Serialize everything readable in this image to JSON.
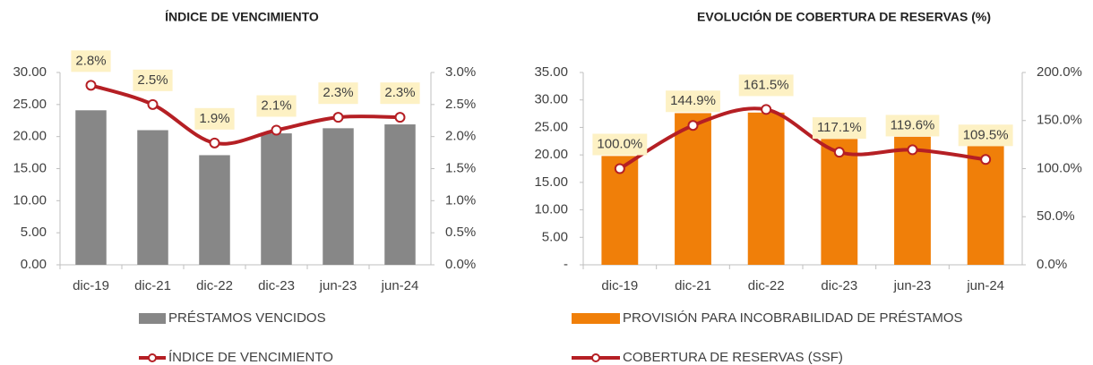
{
  "chart_data": [
    {
      "type": "bar",
      "title": "ÍNDICE DE VENCIMIENTO",
      "categories": [
        "dic-19",
        "dic-21",
        "dic-22",
        "dic-23",
        "jun-23",
        "jun-24"
      ],
      "series": [
        {
          "name": "PRÉSTAMOS VENCIDOS",
          "color": "#878787",
          "values": [
            24.1,
            21.0,
            17.1,
            20.5,
            21.3,
            21.9
          ]
        },
        {
          "name": "ÍNDICE DE VENCIMIENTO",
          "color": "#b51f24",
          "axis": "y2",
          "values": [
            2.8,
            2.5,
            1.9,
            2.1,
            2.3,
            2.3
          ],
          "value_labels": [
            "2.8%",
            "2.5%",
            "1.9%",
            "2.1%",
            "2.3%",
            "2.3%"
          ]
        }
      ],
      "ylim": [
        0,
        30
      ],
      "yticks": [
        {
          "value": 0,
          "label": "0.00"
        },
        {
          "value": 5,
          "label": "5.00"
        },
        {
          "value": 10,
          "label": "10.00"
        },
        {
          "value": 15,
          "label": "15.00"
        },
        {
          "value": 20,
          "label": "20.00"
        },
        {
          "value": 25,
          "label": "25.00"
        },
        {
          "value": 30,
          "label": "30.00"
        }
      ],
      "y2lim": [
        0,
        3
      ],
      "y2ticks": [
        {
          "value": 0,
          "label": "0.0%"
        },
        {
          "value": 0.5,
          "label": "0.5%"
        },
        {
          "value": 1,
          "label": "1.0%"
        },
        {
          "value": 1.5,
          "label": "1.5%"
        },
        {
          "value": 2,
          "label": "2.0%"
        },
        {
          "value": 2.5,
          "label": "2.5%"
        },
        {
          "value": 3,
          "label": "3.0%"
        }
      ],
      "legend": "bottom"
    },
    {
      "type": "bar",
      "title": "EVOLUCIÓN DE COBERTURA DE RESERVAS (%)",
      "categories": [
        "dic-19",
        "dic-21",
        "dic-22",
        "dic-23",
        "jun-23",
        "jun-24"
      ],
      "series": [
        {
          "name": "PROVISIÓN PARA INCOBRABILIDAD DE PRÉSTAMOS",
          "color": "#f07f09",
          "values": [
            19.8,
            27.6,
            27.7,
            22.9,
            23.3,
            21.6
          ]
        },
        {
          "name": "COBERTURA DE RESERVAS (SSF)",
          "color": "#b51f24",
          "axis": "y2",
          "values": [
            100.0,
            144.9,
            161.5,
            117.1,
            119.6,
            109.5
          ],
          "value_labels": [
            "100.0%",
            "144.9%",
            "161.5%",
            "117.1%",
            "119.6%",
            "109.5%"
          ]
        }
      ],
      "ylim": [
        0,
        35
      ],
      "yticks": [
        {
          "value": 0,
          "label": "-"
        },
        {
          "value": 5,
          "label": "5.00"
        },
        {
          "value": 10,
          "label": "10.00"
        },
        {
          "value": 15,
          "label": "15.00"
        },
        {
          "value": 20,
          "label": "20.00"
        },
        {
          "value": 25,
          "label": "25.00"
        },
        {
          "value": 30,
          "label": "30.00"
        },
        {
          "value": 35,
          "label": "35.00"
        }
      ],
      "y2lim": [
        0,
        200
      ],
      "y2ticks": [
        {
          "value": 0,
          "label": "0.0%"
        },
        {
          "value": 50,
          "label": "50.0%"
        },
        {
          "value": 100,
          "label": "100.0%"
        },
        {
          "value": 150,
          "label": "150.0%"
        },
        {
          "value": 200,
          "label": "200.0%"
        }
      ],
      "legend": "bottom"
    }
  ]
}
